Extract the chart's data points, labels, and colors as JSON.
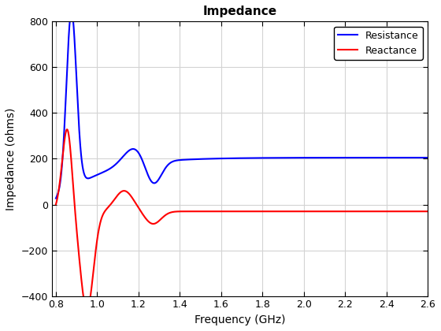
{
  "title": "Impedance",
  "xlabel": "Frequency (GHz)",
  "ylabel": "Impedance (ohms)",
  "xlim": [
    0.78,
    2.6
  ],
  "ylim": [
    -400,
    800
  ],
  "xticks": [
    0.8,
    1.0,
    1.2,
    1.4,
    1.6,
    1.8,
    2.0,
    2.2,
    2.4,
    2.6
  ],
  "yticks": [
    -400,
    -200,
    0,
    200,
    400,
    600,
    800
  ],
  "resistance_color": "#0000FF",
  "reactance_color": "#FF0000",
  "line_width": 1.5,
  "legend_labels": [
    "Resistance",
    "Reactance"
  ],
  "background_color": "#FFFFFF",
  "grid_color": "#D3D3D3",
  "axes_edge_color": "#000000"
}
